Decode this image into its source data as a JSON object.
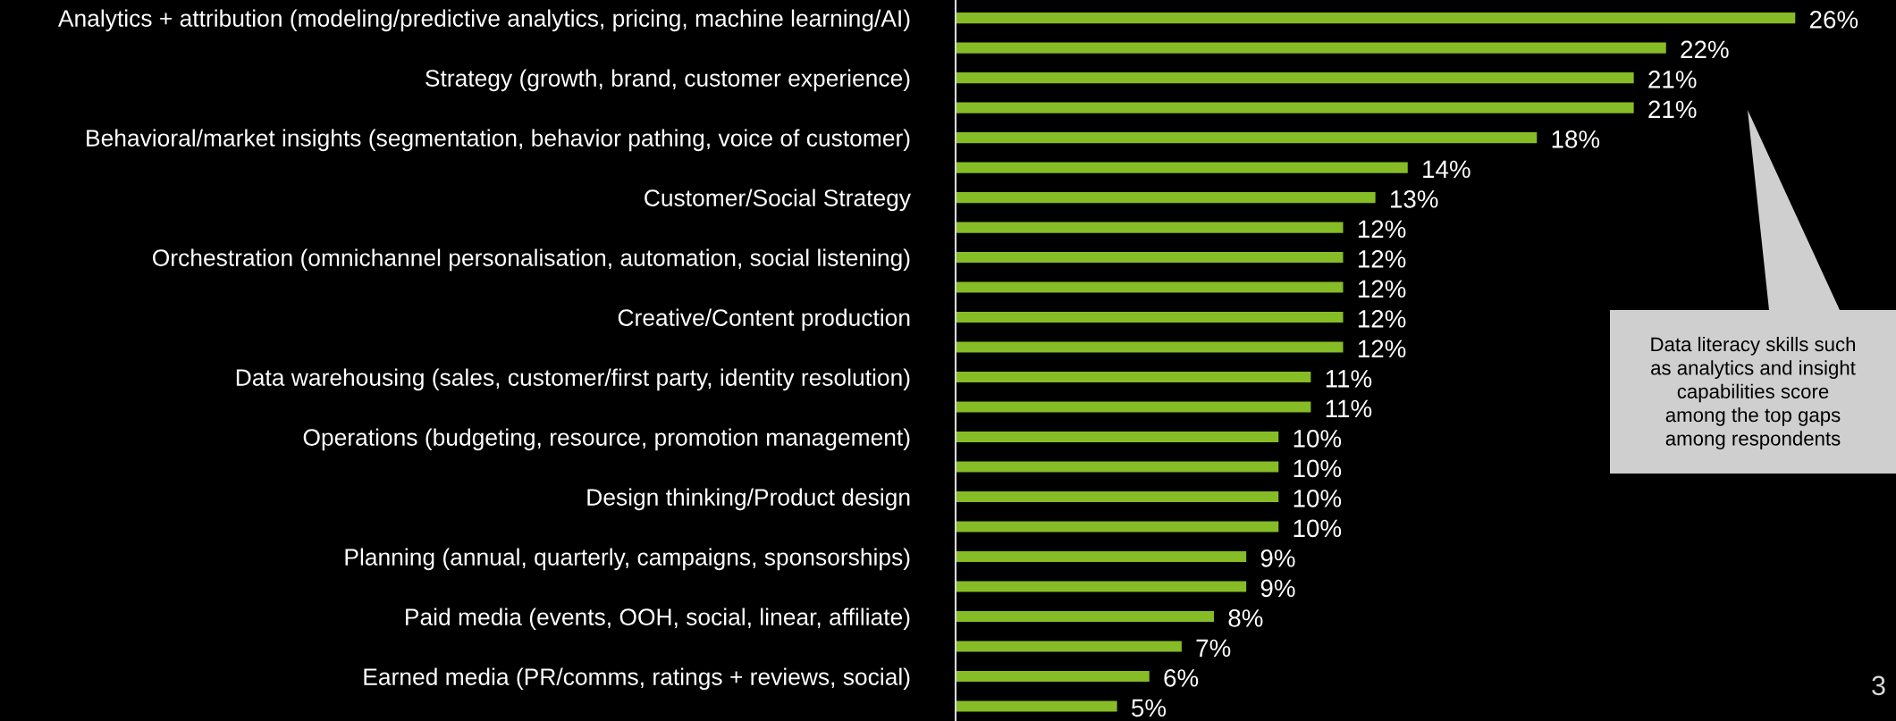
{
  "chart_data": {
    "type": "bar",
    "orientation": "horizontal",
    "categories": [
      "Analytics + attribution (modeling/predictive analytics, pricing, machine learning/AI)",
      null,
      "Strategy (growth, brand, customer experience)",
      null,
      "Behavioral/market insights (segmentation, behavior pathing, voice of customer)",
      null,
      "Customer/Social Strategy",
      null,
      "Orchestration (omnichannel personalisation, automation, social listening)",
      null,
      "Creative/Content production",
      null,
      "Data warehousing (sales, customer/first party, identity resolution)",
      null,
      "Operations (budgeting, resource, promotion management)",
      null,
      "Design thinking/Product design",
      null,
      "Planning (annual, quarterly, campaigns, sponsorships)",
      null,
      "Paid media (events, OOH, social, linear, affiliate)",
      null,
      "Earned media (PR/comms, ratings + reviews, social)",
      null
    ],
    "values": [
      26,
      22,
      21,
      21,
      18,
      14,
      13,
      12,
      12,
      12,
      12,
      12,
      11,
      11,
      10,
      10,
      10,
      10,
      9,
      9,
      8,
      7,
      6,
      5
    ],
    "value_labels": [
      "26%",
      "22%",
      "21%",
      "21%",
      "18%",
      "14%",
      "13%",
      "12%",
      "12%",
      "12%",
      "12%",
      "12%",
      "11%",
      "11%",
      "10%",
      "10%",
      "10%",
      "10%",
      "9%",
      "9%",
      "8%",
      "7%",
      "6%",
      "5%"
    ],
    "color": "#86bc25",
    "tick_labels": "y",
    "annotations": [
      "Data literacy skills such\nas analytics and insight\ncapabilities score\namong the top gaps\namong respondents",
      "3"
    ]
  }
}
